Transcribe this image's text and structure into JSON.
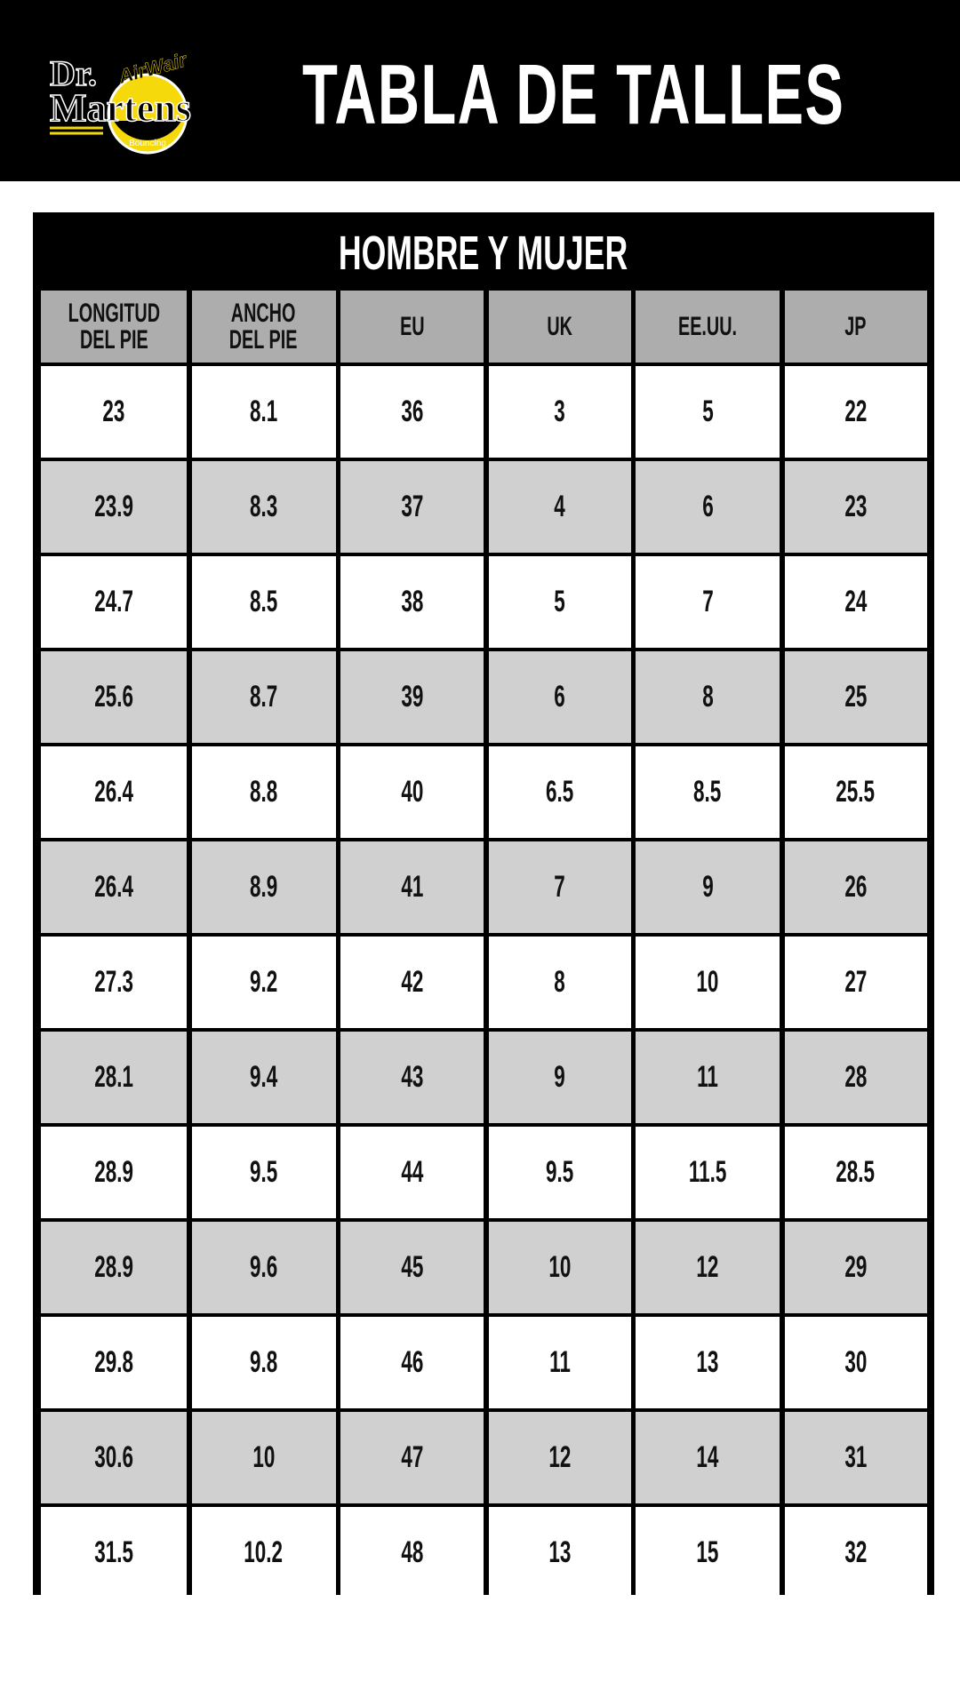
{
  "header": {
    "logo": {
      "brand": "Dr. Martens",
      "tagline": "AirWair",
      "sub": "Bouncing Soles",
      "colors": {
        "yellow": "#f5d90a",
        "black": "#000000"
      }
    },
    "title": "TABLA DE TALLES"
  },
  "table": {
    "title": "HOMBRE Y MUJER",
    "columns": [
      "LONGITUD\nDEL PIE",
      "ANCHO\nDEL PIE",
      "EU",
      "UK",
      "EE.UU.",
      "JP"
    ],
    "rows": [
      [
        "23",
        "8.1",
        "36",
        "3",
        "5",
        "22"
      ],
      [
        "23.9",
        "8.3",
        "37",
        "4",
        "6",
        "23"
      ],
      [
        "24.7",
        "8.5",
        "38",
        "5",
        "7",
        "24"
      ],
      [
        "25.6",
        "8.7",
        "39",
        "6",
        "8",
        "25"
      ],
      [
        "26.4",
        "8.8",
        "40",
        "6.5",
        "8.5",
        "25.5"
      ],
      [
        "26.4",
        "8.9",
        "41",
        "7",
        "9",
        "26"
      ],
      [
        "27.3",
        "9.2",
        "42",
        "8",
        "10",
        "27"
      ],
      [
        "28.1",
        "9.4",
        "43",
        "9",
        "11",
        "28"
      ],
      [
        "28.9",
        "9.5",
        "44",
        "9.5",
        "11.5",
        "28.5"
      ],
      [
        "28.9",
        "9.6",
        "45",
        "10",
        "12",
        "29"
      ],
      [
        "29.8",
        "9.8",
        "46",
        "11",
        "13",
        "30"
      ],
      [
        "30.6",
        "10",
        "47",
        "12",
        "14",
        "31"
      ],
      [
        "31.5",
        "10.2",
        "48",
        "13",
        "15",
        "32"
      ]
    ],
    "colors": {
      "header_bg": "#adadad",
      "alt_row_bg": "#d0d0d0",
      "row_bg": "#ffffff",
      "border": "#000000"
    }
  }
}
